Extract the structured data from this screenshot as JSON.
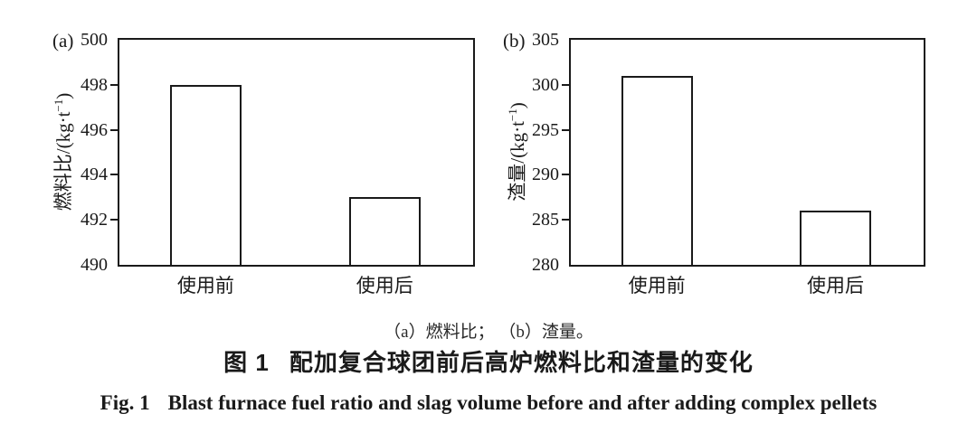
{
  "colors": {
    "ink": "#1a1a1a",
    "background": "#ffffff"
  },
  "chart_data": [
    {
      "type": "bar",
      "panel_label": "(a)",
      "categories": [
        "使用前",
        "使用后"
      ],
      "values": [
        498,
        493
      ],
      "xlabel": "",
      "ylabel": "燃料比/(kg·t⁻¹)",
      "ylabel_parts": {
        "name": "燃料比",
        "unit_pre": "/(kg·t",
        "sup": "−1",
        "unit_post": ")"
      },
      "ylim": [
        490,
        500
      ],
      "yticks": [
        490,
        492,
        494,
        496,
        498,
        500
      ],
      "grid": false,
      "legend": false,
      "bar_fill": "#ffffff",
      "bar_edge": "#1a1a1a"
    },
    {
      "type": "bar",
      "panel_label": "(b)",
      "categories": [
        "使用前",
        "使用后"
      ],
      "values": [
        301,
        286
      ],
      "xlabel": "",
      "ylabel": "渣量/(kg·t⁻¹)",
      "ylabel_parts": {
        "name": "渣量",
        "unit_pre": "/(kg·t",
        "sup": "−1",
        "unit_post": ")"
      },
      "ylim": [
        280,
        305
      ],
      "yticks": [
        280,
        285,
        290,
        295,
        300,
        305
      ],
      "grid": false,
      "legend": false,
      "bar_fill": "#ffffff",
      "bar_edge": "#1a1a1a"
    }
  ],
  "captions": {
    "panel_note": "（a）燃料比； （b）渣量。",
    "zh_label": "图 1",
    "zh_title": "配加复合球团前后高炉燃料比和渣量的变化",
    "en_label": "Fig. 1",
    "en_title": "Blast furnace fuel ratio and slag volume before and after adding complex pellets"
  }
}
